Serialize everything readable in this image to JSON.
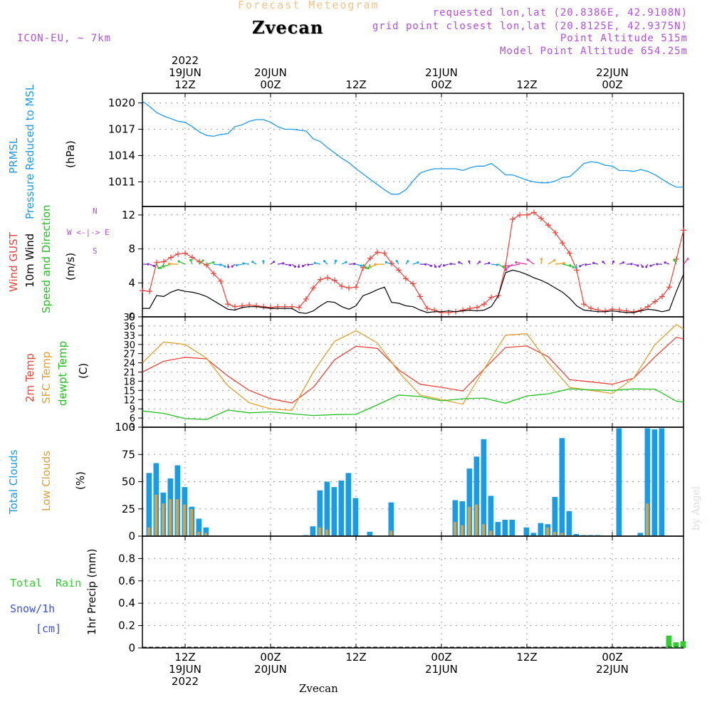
{
  "header": {
    "title": "Forecast Meteogram",
    "city": "Zvecan",
    "model": "ICON-EU, ~ 7km",
    "requested": "requested lon,lat (20.8386E, 42.9108N)",
    "gridpoint": "grid point closest lon,lat (20.8125E, 42.9375N)",
    "point_alt": "Point Altitude 515m",
    "model_alt": "Model Point Altitude 654.25m",
    "footer_city": "Zvecan",
    "watermark": "by Angel"
  },
  "colors": {
    "pressure": "#1e9be8",
    "gust": "#e8443c",
    "wind": "#000000",
    "temp": "#e8443c",
    "sfc": "#e0a030",
    "dewpt": "#22c022",
    "clouds": "#1b9be6",
    "low": "#d9a040",
    "rain": "#33cc33",
    "title": "#f2c48c",
    "purple": "#b04fd8",
    "grid": "#999999"
  },
  "time_axis_top": [
    {
      "l1": "2022",
      "l2": "19JUN",
      "l3": "12Z"
    },
    {
      "l1": "",
      "l2": "20JUN",
      "l3": "00Z"
    },
    {
      "l1": "",
      "l2": "",
      "l3": "12Z"
    },
    {
      "l1": "",
      "l2": "21JUN",
      "l3": "00Z"
    },
    {
      "l1": "",
      "l2": "",
      "l3": "12Z"
    },
    {
      "l1": "",
      "l2": "22JUN",
      "l3": "00Z"
    }
  ],
  "time_axis_bottom": [
    {
      "l1": "12Z",
      "l2": "19JUN",
      "l3": "2022"
    },
    {
      "l1": "00Z",
      "l2": "20JUN",
      "l3": ""
    },
    {
      "l1": "12Z",
      "l2": "",
      "l3": ""
    },
    {
      "l1": "00Z",
      "l2": "21JUN",
      "l3": ""
    },
    {
      "l1": "12Z",
      "l2": "",
      "l3": ""
    },
    {
      "l1": "00Z",
      "l2": "22JUN",
      "l3": ""
    }
  ],
  "labels": {
    "prmsl": "PRMSL",
    "prmsl2": "Pressure Reduced to MSL",
    "hpa": "(hPa)",
    "gust": "Wind GUST",
    "wind10": "10m Wind",
    "speeddir": "Speed and Direction",
    "ms": "(m/s)",
    "compass_n": "N",
    "compass_we": "W <-|-> E",
    "compass_s": "S",
    "temp2m": "2m Temp",
    "sfc": "SFC Temp",
    "dewpt": "dewpt Temp",
    "degc": "(C)",
    "total_clouds": "Total Clouds",
    "low_clouds": "Low Clouds",
    "pct": "(%)",
    "total": "Total",
    "rain": "Rain",
    "snow": "Snow/1h",
    "cm": "[cm]",
    "precip": "1hr Precip (mm)"
  },
  "chart_data": [
    {
      "type": "line",
      "title": "PRMSL Pressure Reduced to MSL",
      "ylabel": "(hPa)",
      "x_unit": "hours from 2022-06-19 06Z",
      "ylim": [
        1008.2,
        1021.1
      ],
      "yticks": [
        1011,
        1014,
        1017,
        1020
      ],
      "series": [
        {
          "name": "PRMSL",
          "x": [
            0,
            1,
            2,
            3,
            4,
            5,
            6,
            7,
            8,
            9,
            10,
            11,
            12,
            13,
            14,
            15,
            16,
            17,
            18,
            19,
            20,
            21,
            22,
            23,
            24,
            25,
            26,
            27,
            28,
            29,
            30,
            31,
            32,
            33,
            34,
            35,
            36,
            37,
            38,
            39,
            40,
            41,
            42,
            43,
            44,
            45,
            46,
            47,
            48,
            49,
            50,
            51,
            52,
            53,
            54,
            55,
            56,
            57,
            58,
            59,
            60,
            61,
            62,
            63,
            64,
            65,
            66,
            67,
            68,
            69,
            70,
            71,
            72,
            73,
            74,
            75,
            76
          ],
          "values": [
            1020.2,
            1019.6,
            1018.9,
            1018.5,
            1018.2,
            1017.9,
            1017.8,
            1017.3,
            1016.7,
            1016.3,
            1016.2,
            1016.4,
            1016.5,
            1017.3,
            1017.5,
            1017.9,
            1018.1,
            1018.1,
            1017.8,
            1017.3,
            1017.0,
            1017.0,
            1016.9,
            1016.8,
            1015.9,
            1015.6,
            1014.9,
            1014.3,
            1013.7,
            1013.2,
            1012.5,
            1011.9,
            1011.3,
            1010.7,
            1010.1,
            1009.6,
            1009.6,
            1010.1,
            1011.1,
            1012.0,
            1012.3,
            1012.5,
            1012.5,
            1012.5,
            1012.5,
            1012.3,
            1012.6,
            1012.8,
            1012.8,
            1013.1,
            1012.5,
            1011.8,
            1011.8,
            1011.5,
            1011.2,
            1011.0,
            1010.9,
            1010.9,
            1011.1,
            1011.5,
            1011.6,
            1012.3,
            1013.1,
            1013.3,
            1013.2,
            1012.9,
            1012.8,
            1012.3,
            1012.3,
            1012.2,
            1012.4,
            1012.2,
            1011.8,
            1011.3,
            1010.8,
            1010.4,
            1010.4
          ]
        }
      ]
    },
    {
      "type": "line",
      "title": "Wind GUST / 10m Wind Speed and Direction",
      "ylabel": "(m/s)",
      "x_unit": "hours from 2022-06-19 06Z",
      "ylim": [
        0,
        13
      ],
      "yticks": [
        0,
        4,
        8,
        12
      ],
      "series": [
        {
          "name": "Wind GUST",
          "x": [
            0,
            1,
            2,
            3,
            4,
            5,
            6,
            7,
            8,
            9,
            10,
            11,
            12,
            13,
            14,
            15,
            16,
            17,
            18,
            19,
            20,
            21,
            22,
            23,
            24,
            25,
            26,
            27,
            28,
            29,
            30,
            31,
            32,
            33,
            34,
            35,
            36,
            37,
            38,
            39,
            40,
            41,
            42,
            43,
            44,
            45,
            46,
            47,
            48,
            49,
            50,
            51,
            52,
            53,
            54,
            55,
            56,
            57,
            58,
            59,
            60,
            61,
            62,
            63,
            64,
            65,
            66,
            67,
            68,
            69,
            70,
            71,
            72,
            73,
            74,
            75,
            76
          ],
          "values": [
            3.1,
            3.0,
            6.4,
            6.5,
            7.0,
            7.4,
            7.5,
            7.0,
            6.5,
            6.1,
            5.1,
            4.2,
            1.5,
            1.2,
            1.3,
            1.4,
            1.3,
            1.2,
            1.1,
            1.2,
            1.2,
            1.2,
            1.1,
            2.1,
            3.4,
            4.4,
            4.6,
            4.3,
            3.6,
            3.4,
            3.5,
            5.8,
            6.9,
            7.6,
            7.5,
            6.3,
            5.5,
            4.5,
            3.9,
            2.4,
            1.0,
            0.8,
            0.5,
            0.5,
            0.6,
            0.8,
            1.0,
            1.1,
            1.5,
            2.3,
            2.5,
            6.0,
            11.5,
            12.0,
            12.0,
            12.3,
            11.6,
            10.8,
            9.9,
            8.7,
            7.5,
            5.5,
            1.5,
            1.0,
            0.8,
            0.7,
            0.9,
            0.8,
            0.7,
            0.6,
            0.8,
            1.2,
            1.8,
            2.4,
            3.5,
            6.8,
            10.2
          ]
        },
        {
          "name": "10m Wind",
          "x": [
            0,
            1,
            2,
            3,
            4,
            5,
            6,
            7,
            8,
            9,
            10,
            11,
            12,
            13,
            14,
            15,
            16,
            17,
            18,
            19,
            20,
            21,
            22,
            23,
            24,
            25,
            26,
            27,
            28,
            29,
            30,
            31,
            32,
            33,
            34,
            35,
            36,
            37,
            38,
            39,
            40,
            41,
            42,
            43,
            44,
            45,
            46,
            47,
            48,
            49,
            50,
            51,
            52,
            53,
            54,
            55,
            56,
            57,
            58,
            59,
            60,
            61,
            62,
            63,
            64,
            65,
            66,
            67,
            68,
            69,
            70,
            71,
            72,
            73,
            74,
            75,
            76
          ],
          "values": [
            1.0,
            1.0,
            2.5,
            2.4,
            2.9,
            3.2,
            3.0,
            2.9,
            2.7,
            2.4,
            1.9,
            1.4,
            0.9,
            0.8,
            1.1,
            1.2,
            1.2,
            1.1,
            1.0,
            1.0,
            1.0,
            1.0,
            0.5,
            0.4,
            0.7,
            1.3,
            1.8,
            1.7,
            1.2,
            0.9,
            1.3,
            2.5,
            2.8,
            3.2,
            3.5,
            1.7,
            1.6,
            1.3,
            1.2,
            0.8,
            0.5,
            0.6,
            0.6,
            0.7,
            0.6,
            0.7,
            0.8,
            0.7,
            0.8,
            1.2,
            2.5,
            5.2,
            5.5,
            5.3,
            5.0,
            4.6,
            4.3,
            3.9,
            3.4,
            2.9,
            2.2,
            1.3,
            0.8,
            0.7,
            0.6,
            0.6,
            0.7,
            0.6,
            0.5,
            0.5,
            0.7,
            0.9,
            0.8,
            0.6,
            0.8,
            3.0,
            5.0
          ]
        }
      ]
    },
    {
      "type": "line",
      "title": "2m Temp / SFC Temp / dewpt Temp",
      "ylabel": "(C)",
      "x_unit": "hours from 2022-06-19 06Z",
      "ylim": [
        3,
        39
      ],
      "yticks": [
        3,
        6,
        9,
        12,
        15,
        18,
        21,
        24,
        27,
        30,
        33,
        36,
        39
      ],
      "series": [
        {
          "name": "2m Temp",
          "x": [
            0,
            3,
            6,
            9,
            12,
            15,
            18,
            21,
            24,
            27,
            30,
            33,
            36,
            39,
            42,
            45,
            48,
            51,
            54,
            57,
            60,
            63,
            66,
            69,
            72,
            75,
            76
          ],
          "values": [
            21.0,
            24.5,
            25.8,
            25.3,
            19.7,
            15.0,
            12.3,
            10.9,
            16.0,
            25.0,
            29.4,
            28.7,
            21.7,
            17.0,
            16.0,
            14.8,
            22.0,
            29.0,
            29.5,
            26.0,
            18.5,
            17.8,
            17.0,
            19.0,
            26.0,
            32.3,
            31.8
          ]
        },
        {
          "name": "SFC Temp",
          "x": [
            0,
            3,
            6,
            9,
            12,
            15,
            18,
            21,
            24,
            27,
            30,
            33,
            36,
            39,
            42,
            45,
            48,
            51,
            54,
            57,
            60,
            63,
            66,
            69,
            72,
            75,
            76
          ],
          "values": [
            24.0,
            30.8,
            30.0,
            25.5,
            16.5,
            11.0,
            9.0,
            8.5,
            21.0,
            31.0,
            34.5,
            30.5,
            21.0,
            13.5,
            12.0,
            10.5,
            22.0,
            33.0,
            33.5,
            24.0,
            16.0,
            15.0,
            14.0,
            19.0,
            30.0,
            36.5,
            35.0
          ]
        },
        {
          "name": "dewpt Temp",
          "x": [
            0,
            3,
            6,
            9,
            12,
            15,
            18,
            21,
            24,
            27,
            30,
            33,
            36,
            39,
            42,
            45,
            48,
            51,
            54,
            57,
            60,
            63,
            66,
            69,
            72,
            75,
            76
          ],
          "values": [
            8.3,
            7.5,
            5.8,
            5.5,
            8.6,
            7.7,
            8.0,
            7.4,
            6.8,
            7.1,
            7.2,
            10.3,
            13.5,
            13.0,
            11.6,
            12.3,
            12.5,
            10.8,
            13.2,
            13.9,
            15.5,
            15.2,
            15.0,
            15.5,
            15.4,
            11.5,
            11.2
          ]
        }
      ]
    },
    {
      "type": "bar",
      "title": "Total Clouds / Low Clouds",
      "ylabel": "(%)",
      "x_unit": "hours from 2022-06-19 06Z",
      "ylim": [
        0,
        100
      ],
      "yticks": [
        0,
        25,
        50,
        75,
        100
      ],
      "series": [
        {
          "name": "Total Clouds",
          "x": [
            1,
            2,
            3,
            4,
            5,
            6,
            7,
            8,
            9,
            22,
            23,
            24,
            25,
            26,
            27,
            28,
            29,
            30,
            32,
            33,
            34,
            35,
            44,
            45,
            46,
            47,
            48,
            49,
            50,
            51,
            52,
            53,
            54,
            55,
            56,
            57,
            58,
            59,
            60,
            61,
            62,
            63,
            64,
            67,
            68,
            69,
            70,
            71,
            72,
            73,
            74,
            75,
            76
          ],
          "values": [
            58,
            67,
            40,
            53,
            65,
            45,
            27,
            16,
            8,
            0,
            1,
            9,
            42,
            50,
            45,
            51,
            58,
            35,
            4,
            0,
            0,
            31,
            33,
            32,
            62,
            73,
            89,
            37,
            13,
            15,
            15,
            0,
            8,
            3,
            12,
            11,
            36,
            90,
            23,
            2,
            1,
            1,
            1,
            99,
            0,
            0,
            3,
            99,
            98,
            99,
            0,
            0,
            0
          ]
        },
        {
          "name": "Low Clouds",
          "x": [
            1,
            2,
            3,
            4,
            5,
            6,
            7,
            8,
            9,
            25,
            26,
            30,
            35,
            44,
            45,
            46,
            47,
            48,
            49,
            57,
            58,
            59,
            60,
            71
          ],
          "values": [
            8,
            38,
            30,
            34,
            34,
            29,
            25,
            4,
            3,
            8,
            6,
            0,
            5,
            13,
            10,
            27,
            29,
            11,
            5,
            8,
            4,
            3,
            1,
            30
          ]
        }
      ]
    },
    {
      "type": "bar",
      "title": "1hr Precip",
      "ylabel": "1hr Precip (mm)",
      "x_unit": "hours from 2022-06-19 06Z",
      "ylim": [
        0,
        1.0
      ],
      "yticks": [
        0,
        0.2,
        0.4,
        0.6,
        0.8
      ],
      "series": [
        {
          "name": "Total Rain",
          "x": [
            74,
            75,
            76
          ],
          "values": [
            0.11,
            0.05,
            0.06
          ]
        }
      ]
    }
  ]
}
